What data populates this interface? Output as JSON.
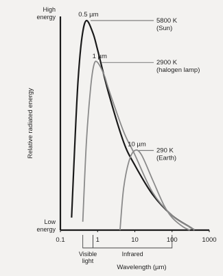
{
  "chart_data": {
    "type": "line",
    "xscale": "log",
    "xlim": [
      0.1,
      1000
    ],
    "xlabel": "Wavelength (µm)",
    "ylabel": "Relative radiated energy",
    "y_top_label": [
      "High",
      "energy"
    ],
    "y_bottom_label": [
      "Low",
      "energy"
    ],
    "x_ticks": [
      "0.1",
      "1",
      "10",
      "100",
      "1000"
    ],
    "bands": [
      {
        "label": [
          "Visible",
          "light"
        ],
        "range": [
          0.4,
          0.75
        ]
      },
      {
        "label": [
          "Infrared"
        ],
        "range": [
          0.75,
          100
        ]
      }
    ],
    "series": [
      {
        "name": "5800 K",
        "source": "(Sun)",
        "peak_label": "0.5 µm",
        "color": "#1a1a1a",
        "points": [
          [
            0.2,
            0.06
          ],
          [
            0.25,
            0.45
          ],
          [
            0.3,
            0.72
          ],
          [
            0.38,
            0.92
          ],
          [
            0.5,
            1.0
          ],
          [
            0.75,
            0.94
          ],
          [
            1,
            0.86
          ],
          [
            2,
            0.65
          ],
          [
            5,
            0.42
          ],
          [
            10,
            0.31
          ],
          [
            30,
            0.17
          ],
          [
            100,
            0.07
          ],
          [
            300,
            0.015
          ],
          [
            400,
            0.0
          ]
        ]
      },
      {
        "name": "2900 K",
        "source": "(halogen lamp)",
        "peak_label": "1 µm",
        "color": "#8a8a8a",
        "points": [
          [
            0.4,
            0.04
          ],
          [
            0.5,
            0.42
          ],
          [
            0.65,
            0.68
          ],
          [
            0.8,
            0.79
          ],
          [
            1,
            0.8
          ],
          [
            1.5,
            0.74
          ],
          [
            2,
            0.67
          ],
          [
            5,
            0.47
          ],
          [
            10,
            0.36
          ],
          [
            30,
            0.18
          ],
          [
            100,
            0.07
          ],
          [
            300,
            0.015
          ],
          [
            400,
            0.0
          ]
        ]
      },
      {
        "name": "290 K",
        "source": "(Earth)",
        "peak_label": "10 µm",
        "color": "#8a8a8a",
        "points": [
          [
            4,
            0.0
          ],
          [
            5,
            0.2
          ],
          [
            7,
            0.33
          ],
          [
            10,
            0.38
          ],
          [
            15,
            0.36
          ],
          [
            30,
            0.24
          ],
          [
            60,
            0.12
          ],
          [
            100,
            0.06
          ],
          [
            200,
            0.015
          ],
          [
            300,
            0.0
          ]
        ]
      }
    ]
  }
}
